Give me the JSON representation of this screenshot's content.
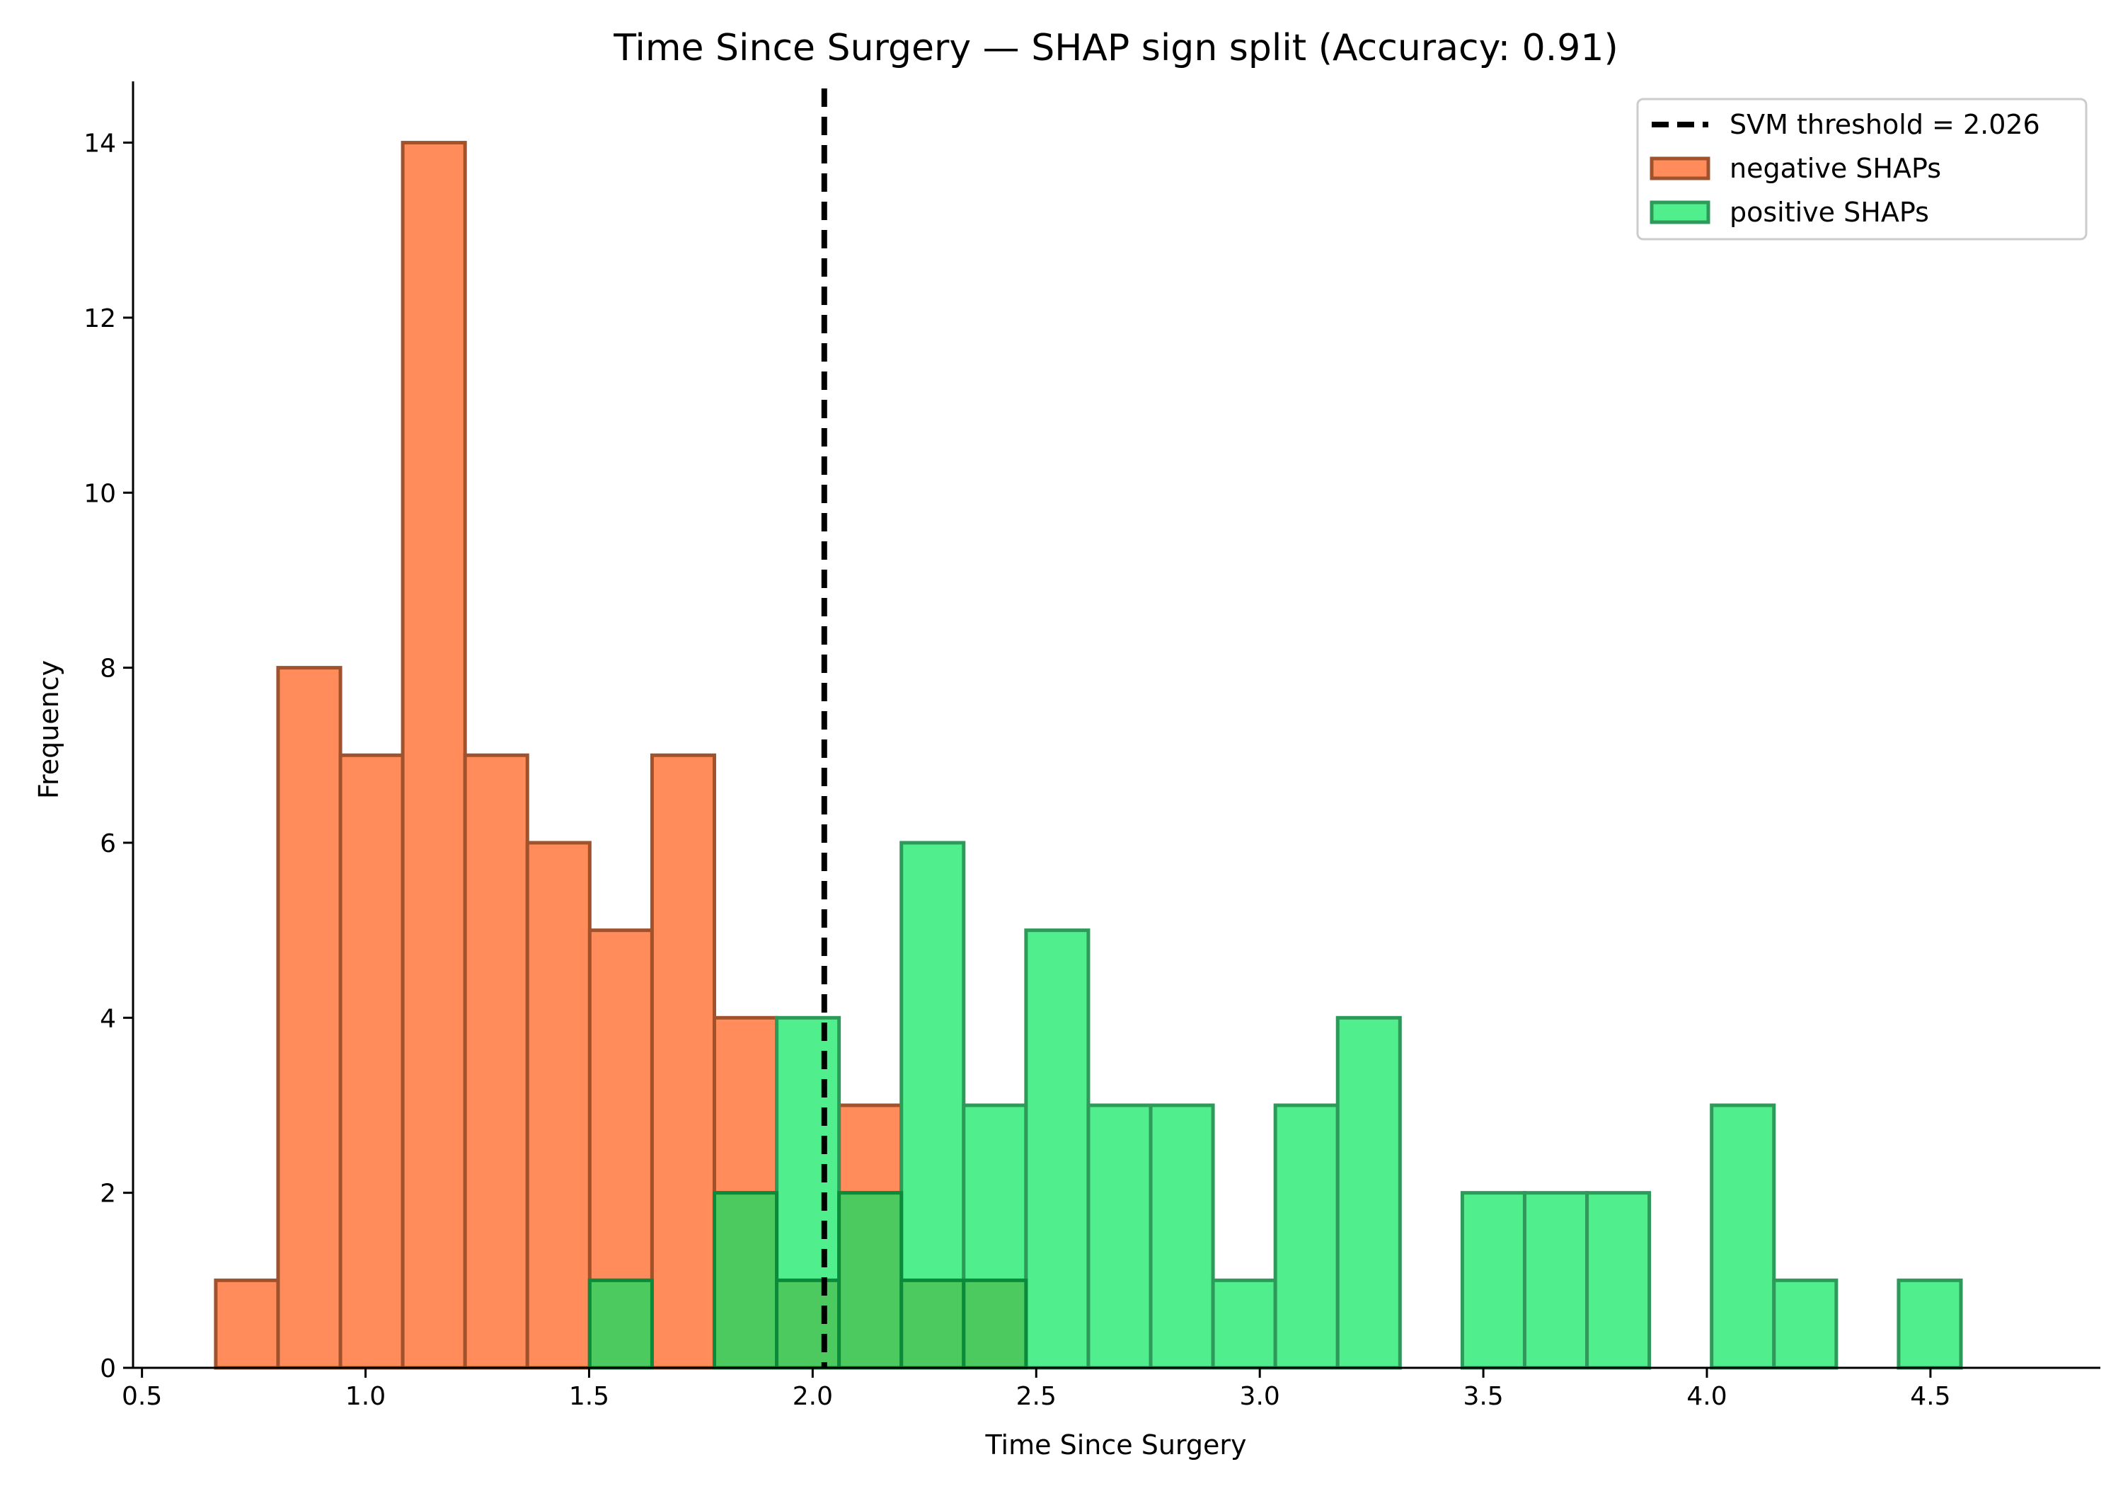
{
  "chart_data": {
    "type": "bar",
    "subtype": "histogram",
    "title": "Time Since Surgery — SHAP sign split (Accuracy: 0.91)",
    "xlabel": "Time Since Surgery",
    "ylabel": "Frequency",
    "xlim": [
      0.48,
      4.88
    ],
    "ylim": [
      0,
      14.7
    ],
    "xticks": [
      0.5,
      1.0,
      1.5,
      2.0,
      2.5,
      3.0,
      3.5,
      4.0,
      4.5
    ],
    "xtick_labels": [
      "0.5",
      "1.0",
      "1.5",
      "2.0",
      "2.5",
      "3.0",
      "3.5",
      "4.0",
      "4.5"
    ],
    "yticks": [
      0,
      2,
      4,
      6,
      8,
      10,
      12,
      14
    ],
    "ytick_labels": [
      "0",
      "2",
      "4",
      "6",
      "8",
      "10",
      "12",
      "14"
    ],
    "grid": false,
    "legend_position": "top-right",
    "legend": [
      {
        "kind": "line",
        "label": "SVM threshold = 2.026",
        "color": "#000000"
      },
      {
        "kind": "patch",
        "label": "negative SHAPs",
        "fill": "#ff8c5a",
        "edge": "#a0522d"
      },
      {
        "kind": "patch",
        "label": "positive SHAPs",
        "fill": "#50ee8c",
        "edge": "#2e9a5a"
      }
    ],
    "threshold": {
      "x": 2.026,
      "color": "#000000",
      "style": "dashed"
    },
    "series": [
      {
        "name": "negative SHAPs",
        "fill": "#ff8c5a",
        "edge": "#a0522d",
        "bin_start": 0.665,
        "bin_width": 0.1394,
        "counts": [
          1,
          8,
          7,
          14,
          7,
          6,
          5,
          7,
          4,
          0,
          3,
          0,
          0,
          0,
          0,
          0,
          0,
          0,
          0,
          0,
          0,
          0,
          0,
          0,
          0,
          0,
          0,
          0,
          0
        ]
      },
      {
        "name": "positive SHAPs",
        "fill": "#50ee8c",
        "edge": "#2e9a5a",
        "bin_start": 0.665,
        "bin_width": 0.1394,
        "counts": [
          0,
          0,
          0,
          0,
          0,
          0,
          1,
          0,
          2,
          4,
          2,
          6,
          3,
          5,
          3,
          3,
          1,
          3,
          4,
          0,
          2,
          2,
          2,
          0,
          3,
          1,
          0,
          1,
          0
        ]
      }
    ],
    "overlap_bins": [
      {
        "bin": 6,
        "count": 1
      },
      {
        "bin": 8,
        "count": 2
      },
      {
        "bin": 9,
        "count": 1
      },
      {
        "bin": 10,
        "count": 2
      },
      {
        "bin": 11,
        "count": 1
      },
      {
        "bin": 12,
        "count": 1
      }
    ],
    "overlap_color": "#4cc95f",
    "overlap_edge": "#0a8a3a"
  }
}
